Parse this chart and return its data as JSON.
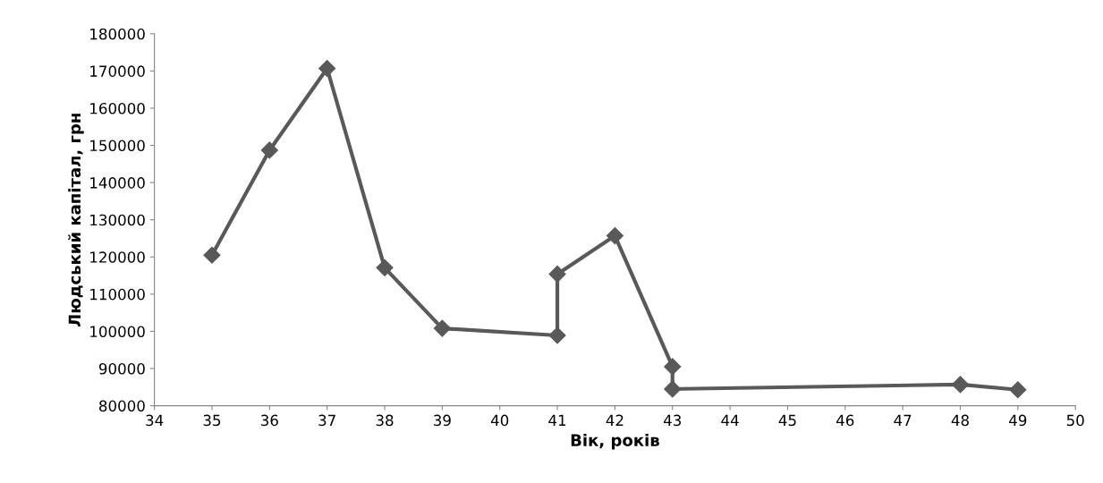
{
  "chart_data": {
    "type": "line",
    "xlabel": "Вік, років",
    "ylabel": "Людський капітал, грн",
    "xlim": [
      34,
      50
    ],
    "xticks": [
      34,
      35,
      36,
      37,
      38,
      39,
      40,
      41,
      42,
      43,
      44,
      45,
      46,
      47,
      48,
      49,
      50
    ],
    "ylim": [
      80000,
      180000
    ],
    "yticks": [
      80000,
      90000,
      100000,
      110000,
      120000,
      130000,
      140000,
      150000,
      160000,
      170000,
      180000
    ],
    "grid": false,
    "legend": false,
    "marker": "diamond",
    "line_style": "solid",
    "series": [
      {
        "color": "#595959",
        "x": [
          35,
          36,
          37,
          38,
          39,
          41,
          41,
          42,
          43,
          43,
          48,
          49
        ],
        "values": [
          120500,
          148700,
          170700,
          117100,
          100800,
          98900,
          115400,
          125700,
          90500,
          84500,
          85700,
          84300
        ]
      }
    ]
  }
}
